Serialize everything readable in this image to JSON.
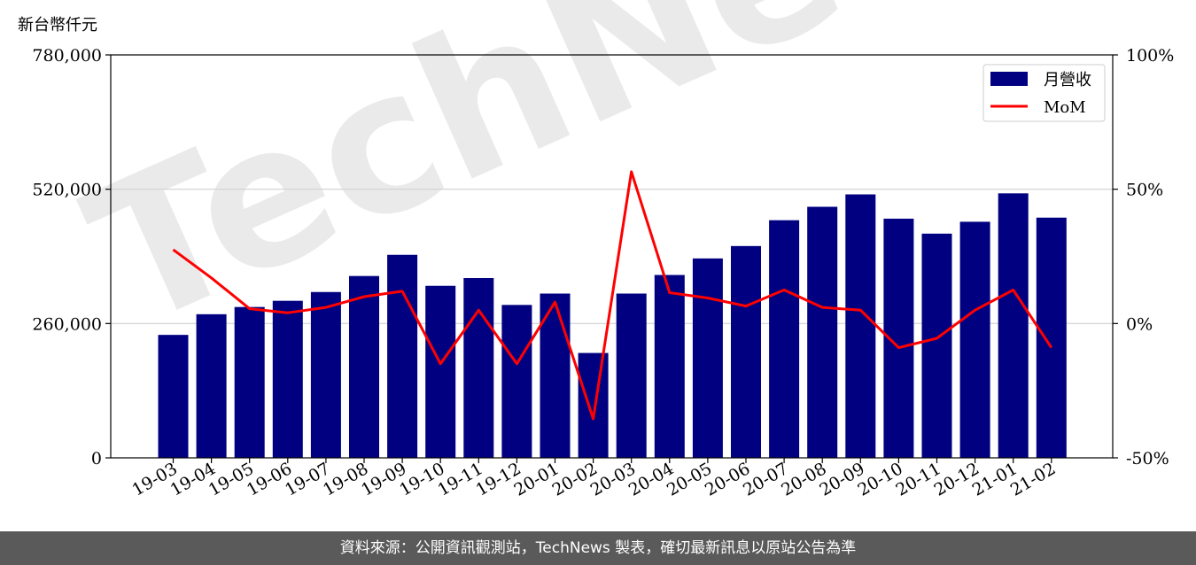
{
  "footer": {
    "source_note": "資料來源：公開資訊觀測站，TechNews 製表，確切最新訊息以原站公告為準"
  },
  "watermark": {
    "text": "TechNews"
  },
  "colors": {
    "bar": "#000080",
    "line": "#ff0000",
    "grid": "#d0d0d0",
    "footer_bg": "#5a5a5a"
  },
  "chart_data": {
    "type": "bar",
    "ylabel": "新台幣仟元",
    "ylim": [
      0,
      780000
    ],
    "y2lim": [
      -50,
      100
    ],
    "y_ticks": [
      "0",
      "260,000",
      "520,000",
      "780,000"
    ],
    "y_tick_values": [
      0,
      260000,
      520000,
      780000
    ],
    "y2_ticks": [
      "-50%",
      "0%",
      "50%",
      "100%"
    ],
    "y2_tick_values": [
      -50,
      0,
      50,
      100
    ],
    "grid": "horizontal",
    "legend_position": "top-right",
    "categories": [
      "19-03",
      "19-04",
      "19-05",
      "19-06",
      "19-07",
      "19-08",
      "19-09",
      "19-10",
      "19-11",
      "19-12",
      "20-01",
      "20-02",
      "20-03",
      "20-04",
      "20-05",
      "20-06",
      "20-07",
      "20-08",
      "20-09",
      "20-10",
      "20-11",
      "20-12",
      "21-01",
      "21-02"
    ],
    "series": [
      {
        "name": "月營收",
        "type": "bar",
        "axis": "left",
        "values": [
          238000,
          278000,
          292000,
          304000,
          321000,
          352000,
          393000,
          333000,
          348000,
          296000,
          318000,
          203000,
          318000,
          354000,
          386000,
          410000,
          460000,
          486000,
          510000,
          463000,
          434000,
          457000,
          512000,
          465000
        ]
      },
      {
        "name": "MoM",
        "type": "line",
        "axis": "right",
        "values": [
          27.5,
          17,
          5.5,
          4,
          6,
          10,
          12,
          -15,
          5,
          -15,
          8,
          -35.5,
          56.5,
          11.5,
          9.5,
          6.5,
          12.5,
          6,
          5,
          -9,
          -5.5,
          5,
          12.5,
          -9
        ]
      }
    ]
  }
}
